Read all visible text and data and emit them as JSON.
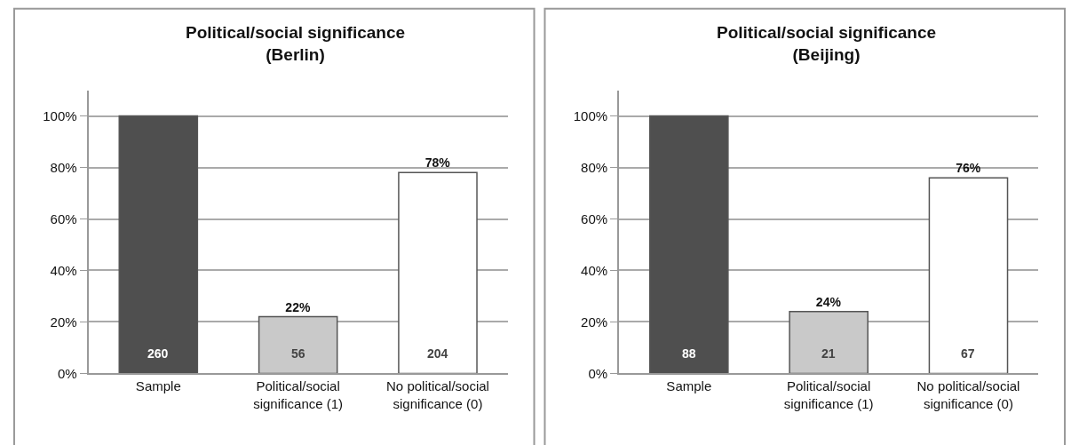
{
  "chart_data": [
    {
      "type": "bar",
      "title": "Political/social significance\n(Berlin)",
      "categories": [
        "Sample",
        "Political/social significance (1)",
        "No political/social significance (0)"
      ],
      "values": [
        100,
        22,
        78
      ],
      "colors": [
        "#4f4f4f",
        "#c9c9c9",
        "#ffffff"
      ],
      "value_labels": [
        null,
        "22%",
        "78%"
      ],
      "annotations": [
        {
          "text": "260",
          "x": "Sample",
          "y": 0
        },
        {
          "text": "56",
          "x": "Political/social significance (1)",
          "y": 0
        },
        {
          "text": "204",
          "x": "No political/social significance (0)",
          "y": 0
        }
      ],
      "ylim": [
        0,
        110
      ],
      "yticks": [
        {
          "value": 0,
          "label": "0%"
        },
        {
          "value": 20,
          "label": "20%"
        },
        {
          "value": 40,
          "label": "40%"
        },
        {
          "value": 60,
          "label": "60%"
        },
        {
          "value": 80,
          "label": "80%"
        },
        {
          "value": 100,
          "label": "100%"
        }
      ],
      "grid": "y"
    },
    {
      "type": "bar",
      "title": "Political/social significance\n(Beijing)",
      "categories": [
        "Sample",
        "Political/social significance (1)",
        "No political/social significance (0)"
      ],
      "values": [
        100,
        24,
        76
      ],
      "colors": [
        "#4f4f4f",
        "#c9c9c9",
        "#ffffff"
      ],
      "value_labels": [
        null,
        "24%",
        "76%"
      ],
      "annotations": [
        {
          "text": "88",
          "x": "Sample",
          "y": 0
        },
        {
          "text": "21",
          "x": "Political/social significance (1)",
          "y": 0
        },
        {
          "text": "67",
          "x": "No political/social significance (0)",
          "y": 0
        }
      ],
      "ylim": [
        0,
        110
      ],
      "yticks": [
        {
          "value": 0,
          "label": "0%"
        },
        {
          "value": 20,
          "label": "20%"
        },
        {
          "value": 40,
          "label": "40%"
        },
        {
          "value": 60,
          "label": "60%"
        },
        {
          "value": 80,
          "label": "80%"
        },
        {
          "value": 100,
          "label": "100%"
        }
      ],
      "grid": "y"
    }
  ]
}
